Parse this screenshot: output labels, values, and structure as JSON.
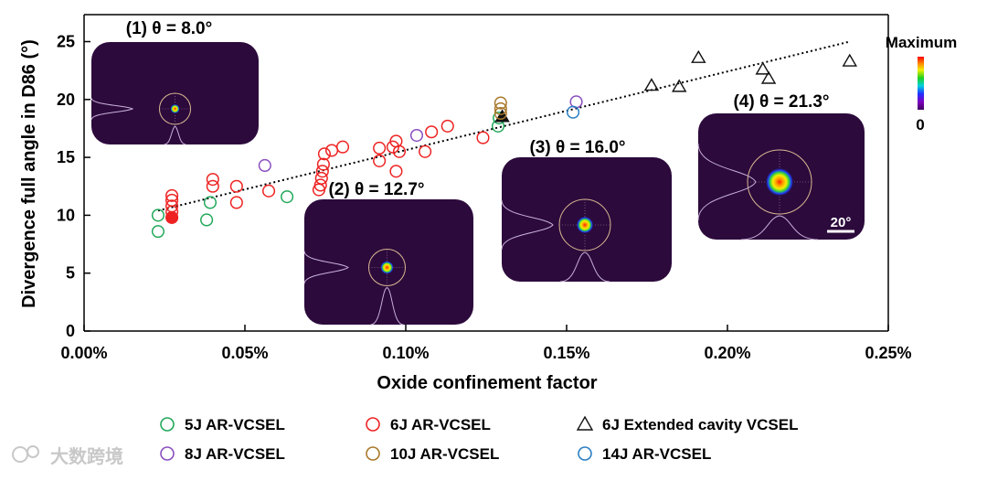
{
  "chart_data": {
    "type": "scatter",
    "xlabel": "Oxide confinement factor",
    "ylabel": "Divergence full angle in D86 (°)",
    "xlim": [
      0,
      0.25
    ],
    "ylim": [
      0,
      25
    ],
    "x_unit": "%",
    "xticks": [
      0,
      0.05,
      0.1,
      0.15,
      0.2,
      0.25
    ],
    "xtick_labels": [
      "0.00%",
      "0.05%",
      "0.10%",
      "0.15%",
      "0.20%",
      "0.25%"
    ],
    "yticks": [
      0,
      5,
      10,
      15,
      20,
      25
    ],
    "ytick_labels": [
      "0",
      "5",
      "10",
      "15",
      "20",
      "25"
    ],
    "legend_position": "bottom",
    "series": [
      {
        "name": "5J AR-VCSEL",
        "marker": "circle",
        "color": "#22a85a",
        "points": [
          [
            0.023,
            10.0
          ],
          [
            0.023,
            8.6
          ],
          [
            0.0392,
            11.1
          ],
          [
            0.0381,
            9.6
          ],
          [
            0.0631,
            11.6
          ],
          [
            0.1287,
            17.7
          ],
          [
            0.129,
            18.4
          ]
        ]
      },
      {
        "name": "6J AR-VCSEL",
        "marker": "circle",
        "color": "#ee2222",
        "points": [
          [
            0.0273,
            10.3
          ],
          [
            0.0273,
            10.8
          ],
          [
            0.0273,
            11.3
          ],
          [
            0.0273,
            11.7
          ],
          [
            0.04,
            13.1
          ],
          [
            0.04,
            12.5
          ],
          [
            0.0474,
            12.5
          ],
          [
            0.0474,
            11.1
          ],
          [
            0.0574,
            12.1
          ],
          [
            0.073,
            12.2
          ],
          [
            0.0735,
            12.6
          ],
          [
            0.0738,
            13.2
          ],
          [
            0.0741,
            13.8
          ],
          [
            0.0744,
            14.4
          ],
          [
            0.0747,
            15.3
          ],
          [
            0.077,
            15.6
          ],
          [
            0.0804,
            15.9
          ],
          [
            0.0918,
            15.8
          ],
          [
            0.0918,
            14.7
          ],
          [
            0.096,
            15.9
          ],
          [
            0.097,
            16.4
          ],
          [
            0.097,
            13.8
          ],
          [
            0.098,
            15.5
          ],
          [
            0.106,
            15.5
          ],
          [
            0.108,
            17.2
          ],
          [
            0.113,
            17.7
          ],
          [
            0.124,
            16.7
          ]
        ],
        "filled_points": [
          [
            0.0273,
            9.8
          ]
        ]
      },
      {
        "name": "6J Extended cavity VCSEL",
        "marker": "triangle",
        "color": "#111111",
        "points": [
          [
            0.1764,
            21.2
          ],
          [
            0.185,
            21.1
          ],
          [
            0.191,
            23.6
          ],
          [
            0.211,
            22.6
          ],
          [
            0.2128,
            21.8
          ],
          [
            0.238,
            23.3
          ]
        ],
        "filled_points": [
          [
            0.13,
            18.5
          ]
        ]
      },
      {
        "name": "8J AR-VCSEL",
        "marker": "circle",
        "color": "#8a4fbf",
        "points": [
          [
            0.0562,
            14.3
          ],
          [
            0.1034,
            16.9
          ],
          [
            0.153,
            19.8
          ]
        ]
      },
      {
        "name": "10J AR-VCSEL",
        "marker": "circle",
        "color": "#a8782a",
        "points": [
          [
            0.1295,
            19.7
          ],
          [
            0.1295,
            19.2
          ],
          [
            0.1295,
            18.8
          ]
        ]
      },
      {
        "name": "14J AR-VCSEL",
        "marker": "circle",
        "color": "#2a7fc4",
        "points": [
          [
            0.152,
            18.9
          ]
        ]
      }
    ],
    "trendline": {
      "style": "dotted",
      "x": [
        0.023,
        0.238
      ],
      "y": [
        10.4,
        25.0
      ]
    },
    "insets": [
      {
        "label": "(1) θ = 8.0°",
        "x": 0.027,
        "y": 19.2
      },
      {
        "label": "(2) θ = 12.7°",
        "x": 0.096,
        "y": 5.7
      },
      {
        "label": "(3) θ = 16.0°",
        "x": 0.158,
        "y": 9.3
      },
      {
        "label": "(4) θ = 21.3°",
        "x": 0.22,
        "y": 13.2,
        "scale_bar": "20°"
      }
    ],
    "colorbar": {
      "max_label": "Maximum",
      "min_label": "0"
    }
  },
  "watermark": "大数跨境"
}
